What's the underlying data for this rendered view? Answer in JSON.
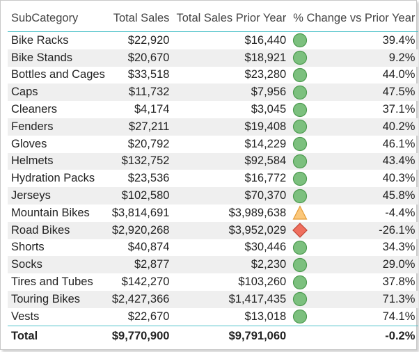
{
  "table": {
    "headers": {
      "subcategory": "SubCategory",
      "total_sales": "Total Sales",
      "prior_year": "Total Sales Prior Year",
      "pct_change": "% Change vs Prior Year"
    },
    "indicator_colors": {
      "up-circle": {
        "fill": "#7cc07e",
        "stroke": "#4d9a50"
      },
      "warning-triangle": {
        "fill": "#fbc77a",
        "stroke": "#e39a35"
      },
      "down-diamond": {
        "fill": "#ef6f5e",
        "stroke": "#c04535"
      }
    },
    "rows": [
      {
        "subcategory": "Bike Racks",
        "total_sales": "$22,920",
        "prior_year": "$16,440",
        "indicator": "up-circle",
        "pct_change": "39.4%"
      },
      {
        "subcategory": "Bike Stands",
        "total_sales": "$20,670",
        "prior_year": "$18,921",
        "indicator": "up-circle",
        "pct_change": "9.2%"
      },
      {
        "subcategory": "Bottles and Cages",
        "total_sales": "$33,518",
        "prior_year": "$23,280",
        "indicator": "up-circle",
        "pct_change": "44.0%"
      },
      {
        "subcategory": "Caps",
        "total_sales": "$11,732",
        "prior_year": "$7,956",
        "indicator": "up-circle",
        "pct_change": "47.5%"
      },
      {
        "subcategory": "Cleaners",
        "total_sales": "$4,174",
        "prior_year": "$3,045",
        "indicator": "up-circle",
        "pct_change": "37.1%"
      },
      {
        "subcategory": "Fenders",
        "total_sales": "$27,211",
        "prior_year": "$19,408",
        "indicator": "up-circle",
        "pct_change": "40.2%"
      },
      {
        "subcategory": "Gloves",
        "total_sales": "$20,792",
        "prior_year": "$14,229",
        "indicator": "up-circle",
        "pct_change": "46.1%"
      },
      {
        "subcategory": "Helmets",
        "total_sales": "$132,752",
        "prior_year": "$92,584",
        "indicator": "up-circle",
        "pct_change": "43.4%"
      },
      {
        "subcategory": "Hydration Packs",
        "total_sales": "$23,536",
        "prior_year": "$16,772",
        "indicator": "up-circle",
        "pct_change": "40.3%"
      },
      {
        "subcategory": "Jerseys",
        "total_sales": "$102,580",
        "prior_year": "$70,370",
        "indicator": "up-circle",
        "pct_change": "45.8%"
      },
      {
        "subcategory": "Mountain Bikes",
        "total_sales": "$3,814,691",
        "prior_year": "$3,989,638",
        "indicator": "warning-triangle",
        "pct_change": "-4.4%"
      },
      {
        "subcategory": "Road Bikes",
        "total_sales": "$2,920,268",
        "prior_year": "$3,952,029",
        "indicator": "down-diamond",
        "pct_change": "-26.1%"
      },
      {
        "subcategory": "Shorts",
        "total_sales": "$40,874",
        "prior_year": "$30,446",
        "indicator": "up-circle",
        "pct_change": "34.3%"
      },
      {
        "subcategory": "Socks",
        "total_sales": "$2,877",
        "prior_year": "$2,230",
        "indicator": "up-circle",
        "pct_change": "29.0%"
      },
      {
        "subcategory": "Tires and Tubes",
        "total_sales": "$142,270",
        "prior_year": "$103,260",
        "indicator": "up-circle",
        "pct_change": "37.8%"
      },
      {
        "subcategory": "Touring Bikes",
        "total_sales": "$2,427,366",
        "prior_year": "$1,417,435",
        "indicator": "up-circle",
        "pct_change": "71.3%"
      },
      {
        "subcategory": "Vests",
        "total_sales": "$22,670",
        "prior_year": "$13,018",
        "indicator": "up-circle",
        "pct_change": "74.1%"
      }
    ],
    "total": {
      "label": "Total",
      "total_sales": "$9,770,900",
      "prior_year": "$9,791,060",
      "pct_change": "-0.2%"
    }
  }
}
